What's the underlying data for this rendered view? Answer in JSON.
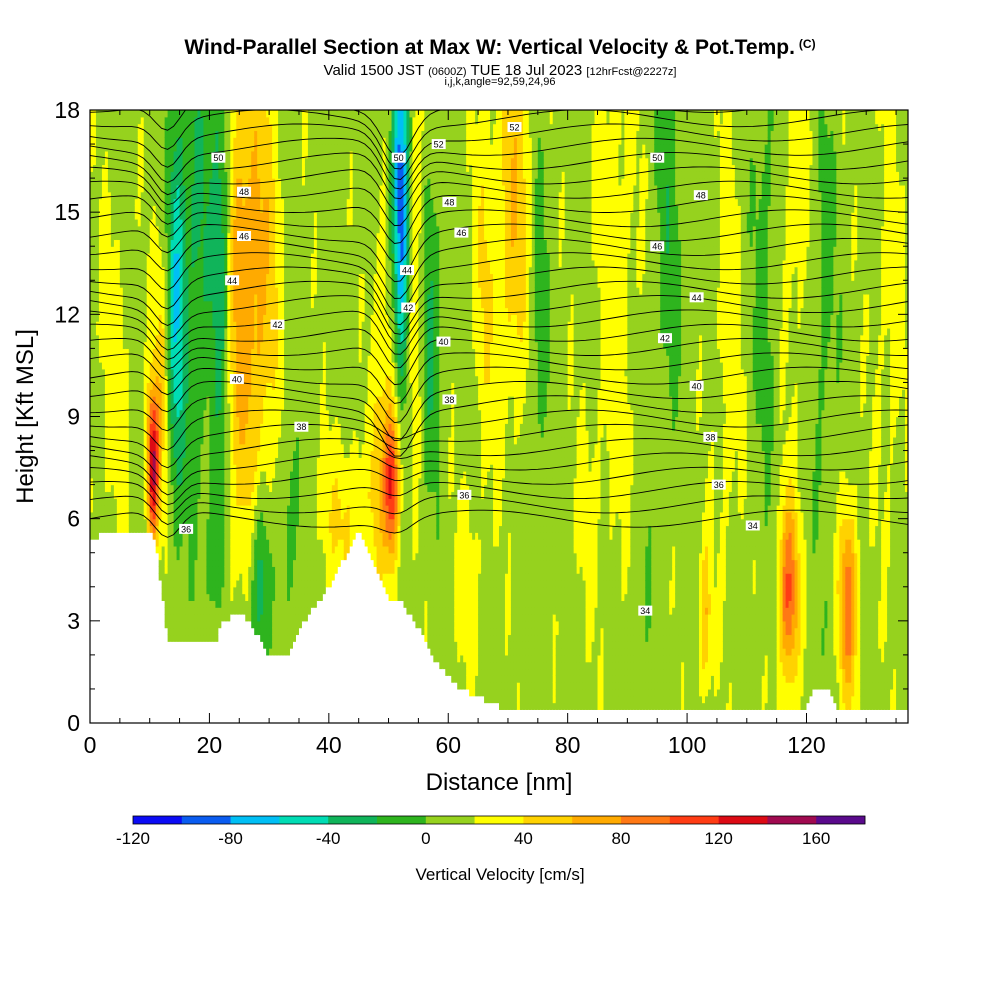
{
  "header": {
    "title": "Wind-Parallel Section at Max W: Vertical Velocity & Pot.Temp.",
    "copyright": "(C)",
    "valid_prefix": "Valid 1500 JST",
    "valid_utc": "(0600Z)",
    "valid_date": "TUE 18 Jul 2023",
    "forecast": "[12hrFcst@2227z]",
    "indices": "i,j,k,angle=92,59,24,96"
  },
  "chart_data": {
    "type": "heatmap",
    "title": "Wind-Parallel Section at Max W: Vertical Velocity & Pot.Temp.",
    "xlabel": "Distance [nm]",
    "ylabel": "Height [Kft MSL]",
    "xlim": [
      0,
      137
    ],
    "ylim": [
      0,
      18
    ],
    "x_ticks": [
      "0",
      "20",
      "40",
      "60",
      "80",
      "100",
      "120"
    ],
    "y_ticks": [
      "0",
      "3",
      "6",
      "9",
      "12",
      "15",
      "18"
    ],
    "colorbar": {
      "title": "Vertical Velocity [cm/s]",
      "bounds": [
        -120,
        180
      ],
      "step": 20,
      "tick_labels": [
        "-120",
        "-80",
        "-40",
        "0",
        "40",
        "80",
        "120",
        "160"
      ],
      "colors": [
        "#0b0bf5",
        "#0a5cf0",
        "#00bff5",
        "#00dcb4",
        "#10b45a",
        "#2eb41e",
        "#96d21e",
        "#ffff00",
        "#ffd200",
        "#ffaa00",
        "#ff7814",
        "#ff3c14",
        "#dc0a14",
        "#a00a50",
        "#5a0a8c"
      ]
    },
    "contour_field": "Potential Temperature",
    "contour_labels": [
      {
        "text": "50",
        "x": 21.5,
        "y": 16.6
      },
      {
        "text": "48",
        "x": 25.8,
        "y": 15.6
      },
      {
        "text": "46",
        "x": 25.8,
        "y": 14.3
      },
      {
        "text": "44",
        "x": 23.8,
        "y": 13.0
      },
      {
        "text": "42",
        "x": 31.4,
        "y": 11.7
      },
      {
        "text": "40",
        "x": 24.6,
        "y": 10.1
      },
      {
        "text": "38",
        "x": 35.4,
        "y": 8.7
      },
      {
        "text": "36",
        "x": 16.1,
        "y": 5.7
      },
      {
        "text": "50",
        "x": 51.7,
        "y": 16.6
      },
      {
        "text": "52",
        "x": 58.4,
        "y": 17.0
      },
      {
        "text": "52",
        "x": 71.1,
        "y": 17.5
      },
      {
        "text": "48",
        "x": 60.2,
        "y": 15.3
      },
      {
        "text": "46",
        "x": 62.2,
        "y": 14.4
      },
      {
        "text": "44",
        "x": 53.1,
        "y": 13.3
      },
      {
        "text": "42",
        "x": 53.3,
        "y": 12.2
      },
      {
        "text": "40",
        "x": 59.2,
        "y": 11.2
      },
      {
        "text": "38",
        "x": 60.2,
        "y": 9.5
      },
      {
        "text": "36",
        "x": 62.7,
        "y": 6.7
      },
      {
        "text": "50",
        "x": 95.0,
        "y": 16.6
      },
      {
        "text": "48",
        "x": 102.3,
        "y": 15.5
      },
      {
        "text": "46",
        "x": 95.0,
        "y": 14.0
      },
      {
        "text": "44",
        "x": 101.6,
        "y": 12.5
      },
      {
        "text": "42",
        "x": 96.3,
        "y": 11.3
      },
      {
        "text": "40",
        "x": 101.6,
        "y": 9.9
      },
      {
        "text": "38",
        "x": 103.9,
        "y": 8.4
      },
      {
        "text": "36",
        "x": 105.3,
        "y": 7.0
      },
      {
        "text": "34",
        "x": 111.0,
        "y": 5.8
      },
      {
        "text": "34",
        "x": 93.0,
        "y": 3.3
      }
    ]
  }
}
